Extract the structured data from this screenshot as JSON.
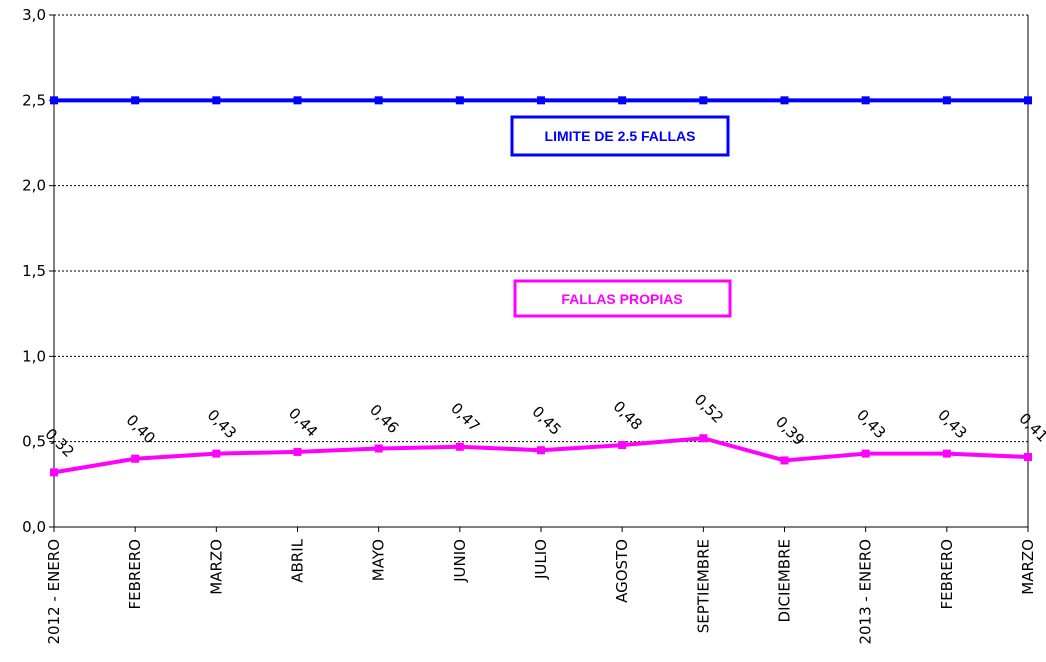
{
  "chart_data": {
    "type": "line",
    "categories": [
      "2012 - ENERO",
      "FEBRERO",
      "MARZO",
      "ABRIL",
      "MAYO",
      "JUNIO",
      "JULIO",
      "AGOSTO",
      "SEPTIEMBRE",
      "DICIEMBRE",
      "2013 - ENERO",
      "FEBRERO",
      "MARZO"
    ],
    "ylim": [
      0,
      3.0
    ],
    "yticks": [
      "0,0",
      "0,5",
      "1,0",
      "1,5",
      "2,0",
      "2,5",
      "3,0"
    ],
    "ytick_values": [
      0,
      0.5,
      1.0,
      1.5,
      2.0,
      2.5,
      3.0
    ],
    "grid": true,
    "series": [
      {
        "name": "LIMITE DE 2.5 FALLAS",
        "color": "#0000ff",
        "values": [
          2.5,
          2.5,
          2.5,
          2.5,
          2.5,
          2.5,
          2.5,
          2.5,
          2.5,
          2.5,
          2.5,
          2.5,
          2.5
        ],
        "labels": []
      },
      {
        "name": "FALLAS PROPIAS",
        "color": "#ff00ff",
        "values": [
          0.32,
          0.4,
          0.43,
          0.44,
          0.46,
          0.47,
          0.45,
          0.48,
          0.52,
          0.39,
          0.43,
          0.43,
          0.41
        ],
        "labels": [
          "0,32",
          "0,40",
          "0,43",
          "0,44",
          "0,46",
          "0,47",
          "0,45",
          "0,48",
          "0,52",
          "0,39",
          "0,43",
          "0,43",
          "0,41"
        ]
      }
    ],
    "annotations": [
      {
        "text": "LIMITE DE 2.5 FALLAS",
        "color": "#0000ff"
      },
      {
        "text": "FALLAS PROPIAS",
        "color": "#ff00ff"
      }
    ]
  }
}
